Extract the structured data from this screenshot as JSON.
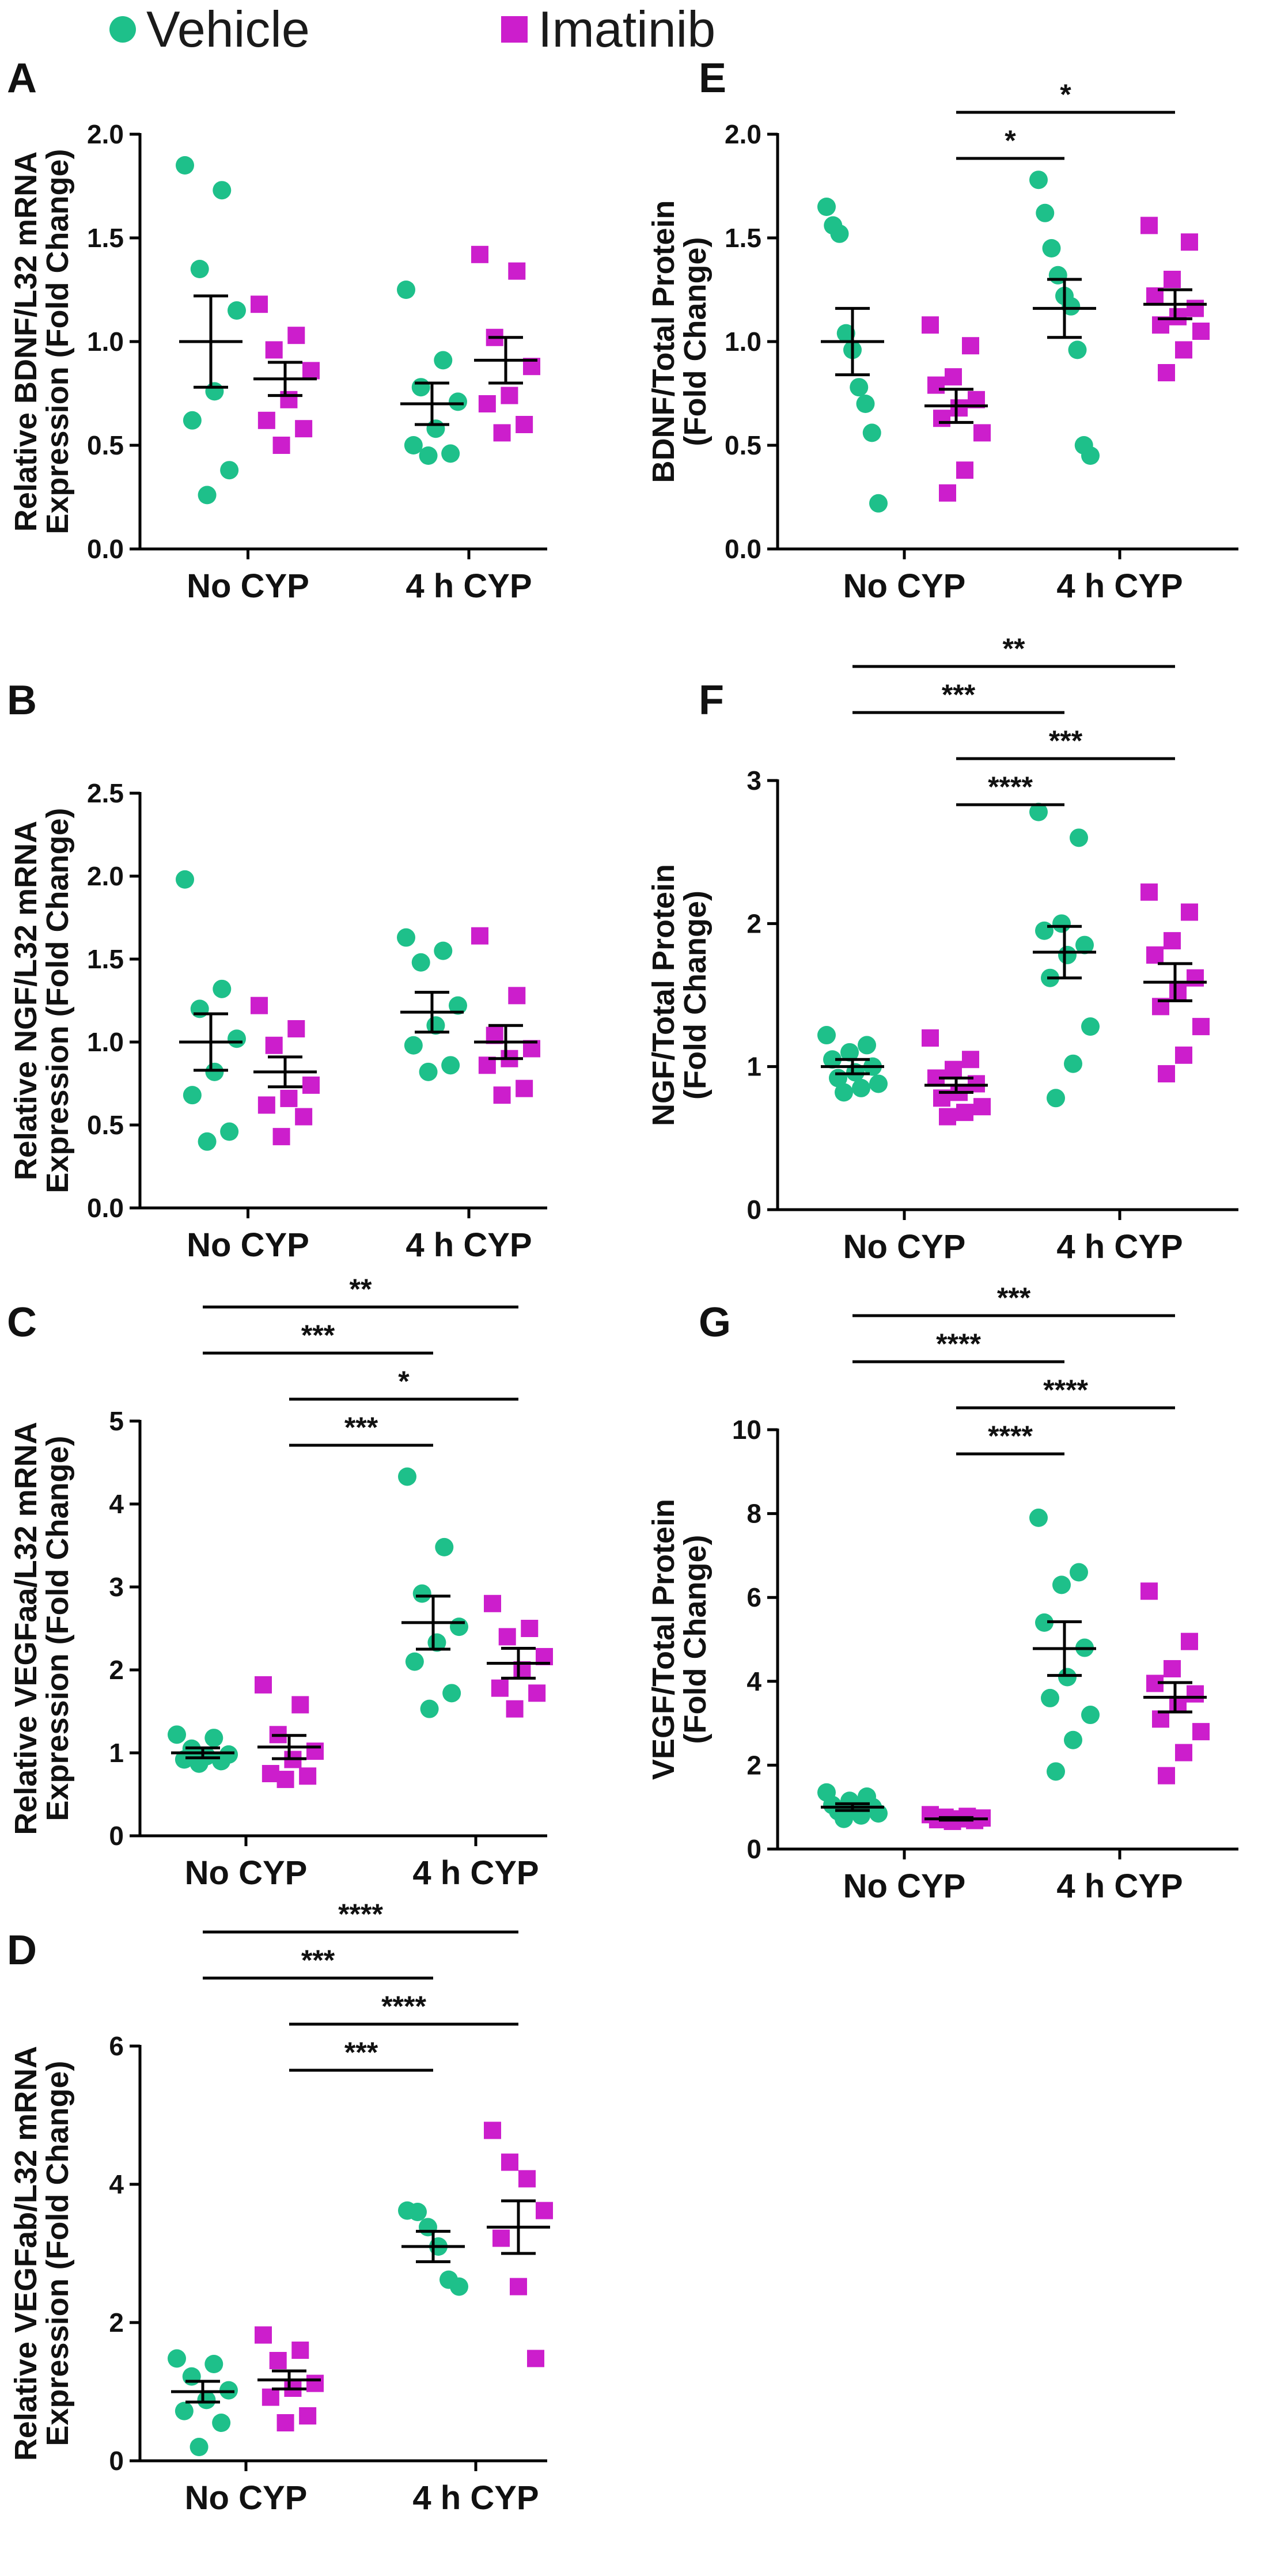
{
  "legend": {
    "items": [
      {
        "label": "Vehicle",
        "color": "#1ec08a",
        "marker": "circle"
      },
      {
        "label": "Imatinib",
        "color": "#cc1ecc",
        "marker": "square"
      }
    ]
  },
  "colors": {
    "vehicle": "#1ec08a",
    "imatinib": "#cc1ecc",
    "axis": "#000000"
  },
  "chart_data": [
    {
      "panel": "A",
      "type": "scatter",
      "ylabel": [
        "Relative BDNF/L32 mRNA",
        "Expression (Fold Change)"
      ],
      "ylim": [
        0,
        2.0
      ],
      "yticks": [
        "0.0",
        "0.5",
        "1.0",
        "1.5",
        "2.0"
      ],
      "categories": [
        "No CYP",
        "4 h CYP"
      ],
      "series": [
        {
          "name": "Vehicle",
          "group": 0,
          "mean": 1.0,
          "sem": 0.22,
          "values": [
            1.85,
            1.73,
            1.35,
            1.15,
            0.76,
            0.62,
            0.38,
            0.26
          ]
        },
        {
          "name": "Imatinib",
          "group": 0,
          "mean": 0.82,
          "sem": 0.08,
          "values": [
            1.18,
            1.03,
            0.96,
            0.86,
            0.72,
            0.62,
            0.58,
            0.5
          ]
        },
        {
          "name": "Vehicle",
          "group": 1,
          "mean": 0.7,
          "sem": 0.1,
          "values": [
            1.25,
            0.91,
            0.78,
            0.71,
            0.58,
            0.5,
            0.46,
            0.45
          ]
        },
        {
          "name": "Imatinib",
          "group": 1,
          "mean": 0.91,
          "sem": 0.11,
          "values": [
            1.42,
            1.34,
            1.02,
            0.88,
            0.74,
            0.7,
            0.6,
            0.56
          ]
        }
      ],
      "comparisons": []
    },
    {
      "panel": "B",
      "type": "scatter",
      "ylabel": [
        "Relative NGF/L32 mRNA",
        "Expression (Fold Change)"
      ],
      "ylim": [
        0,
        2.5
      ],
      "yticks": [
        "0.0",
        "0.5",
        "1.0",
        "1.5",
        "2.0",
        "2.5"
      ],
      "categories": [
        "No CYP",
        "4 h CYP"
      ],
      "series": [
        {
          "name": "Vehicle",
          "group": 0,
          "mean": 1.0,
          "sem": 0.17,
          "values": [
            1.98,
            1.32,
            1.2,
            1.02,
            0.82,
            0.68,
            0.46,
            0.4
          ]
        },
        {
          "name": "Imatinib",
          "group": 0,
          "mean": 0.82,
          "sem": 0.09,
          "values": [
            1.22,
            1.08,
            0.98,
            0.74,
            0.66,
            0.62,
            0.55,
            0.43
          ]
        },
        {
          "name": "Vehicle",
          "group": 1,
          "mean": 1.18,
          "sem": 0.12,
          "values": [
            1.63,
            1.55,
            1.48,
            1.22,
            1.1,
            0.98,
            0.86,
            0.82
          ]
        },
        {
          "name": "Imatinib",
          "group": 1,
          "mean": 1.0,
          "sem": 0.1,
          "values": [
            1.64,
            1.28,
            1.04,
            0.96,
            0.9,
            0.86,
            0.72,
            0.68
          ]
        }
      ],
      "comparisons": []
    },
    {
      "panel": "C",
      "type": "scatter",
      "ylabel": [
        "Relative VEGFaa/L32 mRNA",
        "Expression (Fold Change)"
      ],
      "ylim": [
        0,
        5
      ],
      "yticks": [
        "0",
        "1",
        "2",
        "3",
        "4",
        "5"
      ],
      "categories": [
        "No CYP",
        "4 h CYP"
      ],
      "series": [
        {
          "name": "Vehicle",
          "group": 0,
          "mean": 1.0,
          "sem": 0.06,
          "values": [
            1.22,
            1.18,
            1.05,
            0.98,
            0.96,
            0.92,
            0.9,
            0.87
          ]
        },
        {
          "name": "Imatinib",
          "group": 0,
          "mean": 1.07,
          "sem": 0.14,
          "values": [
            1.82,
            1.58,
            1.22,
            1.02,
            0.92,
            0.75,
            0.72,
            0.68
          ]
        },
        {
          "name": "Vehicle",
          "group": 1,
          "mean": 2.57,
          "sem": 0.32,
          "values": [
            4.33,
            3.48,
            2.92,
            2.52,
            2.33,
            2.1,
            1.72,
            1.53
          ]
        },
        {
          "name": "Imatinib",
          "group": 1,
          "mean": 2.08,
          "sem": 0.18,
          "values": [
            2.8,
            2.5,
            2.4,
            2.16,
            2.0,
            1.78,
            1.72,
            1.53
          ]
        }
      ],
      "comparisons": [
        {
          "from": [
            0,
            0
          ],
          "to": [
            1,
            1
          ],
          "label": "**",
          "level": 4
        },
        {
          "from": [
            0,
            0
          ],
          "to": [
            1,
            0
          ],
          "label": "***",
          "level": 3
        },
        {
          "from": [
            0,
            1
          ],
          "to": [
            1,
            1
          ],
          "label": "*",
          "level": 2
        },
        {
          "from": [
            0,
            1
          ],
          "to": [
            1,
            0
          ],
          "label": "***",
          "level": 1
        }
      ]
    },
    {
      "panel": "D",
      "type": "scatter",
      "ylabel": [
        "Relative VEGFab/L32 mRNA",
        "Expression (Fold Change)"
      ],
      "ylim": [
        0,
        6
      ],
      "yticks": [
        "0",
        "2",
        "4",
        "6"
      ],
      "categories": [
        "No CYP",
        "4 h CYP"
      ],
      "series": [
        {
          "name": "Vehicle",
          "group": 0,
          "mean": 1.0,
          "sem": 0.15,
          "values": [
            1.48,
            1.4,
            1.22,
            1.02,
            0.88,
            0.72,
            0.55,
            0.2
          ]
        },
        {
          "name": "Imatinib",
          "group": 0,
          "mean": 1.17,
          "sem": 0.13,
          "values": [
            1.82,
            1.6,
            1.45,
            1.12,
            1.05,
            0.92,
            0.65,
            0.55
          ]
        },
        {
          "name": "Vehicle",
          "group": 1,
          "mean": 3.1,
          "sem": 0.22,
          "values": [
            3.62,
            3.6,
            3.38,
            3.1,
            2.62,
            2.52
          ]
        },
        {
          "name": "Imatinib",
          "group": 1,
          "mean": 3.38,
          "sem": 0.38,
          "values": [
            4.78,
            4.32,
            4.08,
            3.62,
            3.22,
            2.52,
            1.48
          ]
        }
      ],
      "comparisons": [
        {
          "from": [
            0,
            0
          ],
          "to": [
            1,
            1
          ],
          "label": "****",
          "level": 4
        },
        {
          "from": [
            0,
            0
          ],
          "to": [
            1,
            0
          ],
          "label": "***",
          "level": 3
        },
        {
          "from": [
            0,
            1
          ],
          "to": [
            1,
            1
          ],
          "label": "****",
          "level": 2
        },
        {
          "from": [
            0,
            1
          ],
          "to": [
            1,
            0
          ],
          "label": "***",
          "level": 1
        }
      ]
    },
    {
      "panel": "E",
      "type": "scatter",
      "ylabel": [
        "BDNF/Total Protein",
        "(Fold Change)"
      ],
      "ylim": [
        0,
        2.0
      ],
      "yticks": [
        "0.0",
        "0.5",
        "1.0",
        "1.5",
        "2.0"
      ],
      "categories": [
        "No CYP",
        "4 h CYP"
      ],
      "series": [
        {
          "name": "Vehicle",
          "group": 0,
          "mean": 1.0,
          "sem": 0.16,
          "values": [
            1.65,
            1.56,
            1.52,
            1.04,
            0.96,
            0.78,
            0.7,
            0.56,
            0.22
          ]
        },
        {
          "name": "Imatinib",
          "group": 0,
          "mean": 0.69,
          "sem": 0.08,
          "values": [
            1.08,
            0.98,
            0.83,
            0.79,
            0.72,
            0.68,
            0.63,
            0.56,
            0.38,
            0.27
          ]
        },
        {
          "name": "Vehicle",
          "group": 1,
          "mean": 1.16,
          "sem": 0.14,
          "values": [
            1.78,
            1.62,
            1.45,
            1.32,
            1.22,
            1.17,
            0.96,
            0.5,
            0.45
          ]
        },
        {
          "name": "Imatinib",
          "group": 1,
          "mean": 1.18,
          "sem": 0.07,
          "values": [
            1.56,
            1.48,
            1.3,
            1.22,
            1.16,
            1.12,
            1.08,
            1.05,
            0.96,
            0.85
          ]
        }
      ],
      "comparisons": [
        {
          "from": [
            0,
            1
          ],
          "to": [
            1,
            1
          ],
          "label": "*",
          "level": 2
        },
        {
          "from": [
            0,
            1
          ],
          "to": [
            1,
            0
          ],
          "label": "*",
          "level": 1
        }
      ]
    },
    {
      "panel": "F",
      "type": "scatter",
      "ylabel": [
        "NGF/Total Protein",
        "(Fold Change)"
      ],
      "ylim": [
        0,
        3
      ],
      "yticks": [
        "0",
        "1",
        "2",
        "3"
      ],
      "categories": [
        "No CYP",
        "4 h CYP"
      ],
      "series": [
        {
          "name": "Vehicle",
          "group": 0,
          "mean": 1.0,
          "sem": 0.05,
          "values": [
            1.22,
            1.15,
            1.1,
            1.05,
            1.0,
            0.96,
            0.92,
            0.88,
            0.85,
            0.82
          ]
        },
        {
          "name": "Imatinib",
          "group": 0,
          "mean": 0.87,
          "sem": 0.05,
          "values": [
            1.2,
            1.05,
            0.98,
            0.92,
            0.88,
            0.82,
            0.78,
            0.72,
            0.68,
            0.65
          ]
        },
        {
          "name": "Vehicle",
          "group": 1,
          "mean": 1.8,
          "sem": 0.18,
          "values": [
            2.78,
            2.6,
            2.0,
            1.95,
            1.85,
            1.78,
            1.62,
            1.28,
            1.02,
            0.78
          ]
        },
        {
          "name": "Imatinib",
          "group": 1,
          "mean": 1.59,
          "sem": 0.13,
          "values": [
            2.22,
            2.08,
            1.88,
            1.78,
            1.62,
            1.52,
            1.42,
            1.28,
            1.08,
            0.95
          ]
        }
      ],
      "comparisons": [
        {
          "from": [
            0,
            0
          ],
          "to": [
            1,
            1
          ],
          "label": "**",
          "level": 4
        },
        {
          "from": [
            0,
            0
          ],
          "to": [
            1,
            0
          ],
          "label": "***",
          "level": 3
        },
        {
          "from": [
            0,
            1
          ],
          "to": [
            1,
            1
          ],
          "label": "***",
          "level": 2
        },
        {
          "from": [
            0,
            1
          ],
          "to": [
            1,
            0
          ],
          "label": "****",
          "level": 1
        }
      ]
    },
    {
      "panel": "G",
      "type": "scatter",
      "ylabel": [
        "VEGF/Total Protein",
        "(Fold Change)"
      ],
      "ylim": [
        0,
        10
      ],
      "yticks": [
        "0",
        "2",
        "4",
        "6",
        "8",
        "10"
      ],
      "categories": [
        "No CYP",
        "4 h CYP"
      ],
      "series": [
        {
          "name": "Vehicle",
          "group": 0,
          "mean": 1.0,
          "sem": 0.08,
          "values": [
            1.35,
            1.25,
            1.15,
            1.05,
            1.0,
            0.95,
            0.9,
            0.85,
            0.8,
            0.72
          ]
        },
        {
          "name": "Imatinib",
          "group": 0,
          "mean": 0.72,
          "sem": 0.03,
          "values": [
            0.82,
            0.78,
            0.76,
            0.74,
            0.72,
            0.7,
            0.68,
            0.66
          ]
        },
        {
          "name": "Vehicle",
          "group": 1,
          "mean": 4.78,
          "sem": 0.64,
          "values": [
            7.9,
            6.6,
            6.3,
            5.4,
            4.8,
            4.1,
            3.6,
            3.2,
            2.6,
            1.85
          ]
        },
        {
          "name": "Imatinib",
          "group": 1,
          "mean": 3.62,
          "sem": 0.35,
          "values": [
            6.15,
            4.95,
            4.3,
            3.95,
            3.7,
            3.45,
            3.1,
            2.8,
            2.3,
            1.75
          ]
        }
      ],
      "comparisons": [
        {
          "from": [
            0,
            0
          ],
          "to": [
            1,
            1
          ],
          "label": "***",
          "level": 4
        },
        {
          "from": [
            0,
            0
          ],
          "to": [
            1,
            0
          ],
          "label": "****",
          "level": 3
        },
        {
          "from": [
            0,
            1
          ],
          "to": [
            1,
            1
          ],
          "label": "****",
          "level": 2
        },
        {
          "from": [
            0,
            1
          ],
          "to": [
            1,
            0
          ],
          "label": "****",
          "level": 1
        }
      ]
    }
  ]
}
